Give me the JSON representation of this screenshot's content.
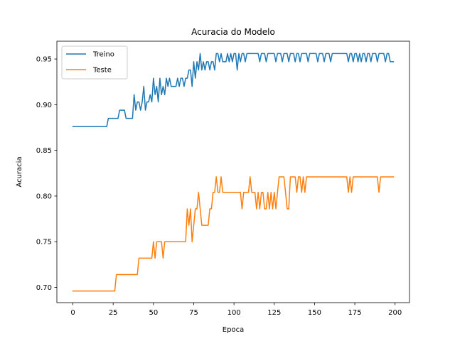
{
  "chart_data": {
    "type": "line",
    "title": "Acuracia do Modelo",
    "xlabel": "Epoca",
    "ylabel": "Acuracia",
    "xlim": [
      -9.95,
      208.95
    ],
    "ylim": [
      0.6833,
      0.9695
    ],
    "xticks": [
      0,
      25,
      50,
      75,
      100,
      125,
      150,
      175,
      200
    ],
    "yticks": [
      0.7,
      0.75,
      0.8,
      0.85,
      0.9,
      0.95
    ],
    "ytick_labels": [
      "0.70",
      "0.75",
      "0.80",
      "0.85",
      "0.90",
      "0.95"
    ],
    "grid": false,
    "legend_position": "top-left",
    "series": [
      {
        "name": "Treino",
        "color": "#1f77b4",
        "points": [
          [
            0,
            0.876
          ],
          [
            10,
            0.876
          ],
          [
            21,
            0.876
          ],
          [
            22,
            0.885
          ],
          [
            25,
            0.885
          ],
          [
            28,
            0.885
          ],
          [
            29,
            0.894
          ],
          [
            32,
            0.894
          ],
          [
            33,
            0.885
          ],
          [
            37,
            0.885
          ],
          [
            38,
            0.911
          ],
          [
            39,
            0.894
          ],
          [
            40,
            0.903
          ],
          [
            41,
            0.903
          ],
          [
            42,
            0.894
          ],
          [
            43,
            0.903
          ],
          [
            44,
            0.92
          ],
          [
            45,
            0.894
          ],
          [
            46,
            0.903
          ],
          [
            47,
            0.903
          ],
          [
            48,
            0.911
          ],
          [
            49,
            0.903
          ],
          [
            50,
            0.929
          ],
          [
            51,
            0.911
          ],
          [
            52,
            0.92
          ],
          [
            53,
            0.903
          ],
          [
            54,
            0.929
          ],
          [
            55,
            0.911
          ],
          [
            56,
            0.92
          ],
          [
            57,
            0.911
          ],
          [
            58,
            0.929
          ],
          [
            59,
            0.92
          ],
          [
            60,
            0.929
          ],
          [
            61,
            0.92
          ],
          [
            62,
            0.92
          ],
          [
            63,
            0.92
          ],
          [
            64,
            0.92
          ],
          [
            65,
            0.929
          ],
          [
            66,
            0.92
          ],
          [
            67,
            0.929
          ],
          [
            68,
            0.929
          ],
          [
            69,
            0.92
          ],
          [
            70,
            0.929
          ],
          [
            71,
            0.929
          ],
          [
            72,
            0.938
          ],
          [
            73,
            0.938
          ],
          [
            74,
            0.92
          ],
          [
            75,
            0.947
          ],
          [
            76,
            0.929
          ],
          [
            77,
            0.947
          ],
          [
            78,
            0.938
          ],
          [
            79,
            0.956
          ],
          [
            80,
            0.938
          ],
          [
            81,
            0.947
          ],
          [
            82,
            0.938
          ],
          [
            83,
            0.947
          ],
          [
            84,
            0.947
          ],
          [
            85,
            0.938
          ],
          [
            86,
            0.947
          ],
          [
            87,
            0.947
          ],
          [
            88,
            0.938
          ],
          [
            89,
            0.956
          ],
          [
            90,
            0.956
          ],
          [
            91,
            0.947
          ],
          [
            92,
            0.956
          ],
          [
            93,
            0.947
          ],
          [
            94,
            0.947
          ],
          [
            95,
            0.947
          ],
          [
            96,
            0.956
          ],
          [
            97,
            0.947
          ],
          [
            98,
            0.956
          ],
          [
            99,
            0.947
          ],
          [
            100,
            0.956
          ],
          [
            101,
            0.956
          ],
          [
            102,
            0.938
          ],
          [
            103,
            0.956
          ],
          [
            104,
            0.947
          ],
          [
            105,
            0.956
          ],
          [
            106,
            0.956
          ],
          [
            107,
            0.947
          ],
          [
            108,
            0.956
          ],
          [
            109,
            0.956
          ],
          [
            110,
            0.956
          ],
          [
            111,
            0.956
          ],
          [
            112,
            0.956
          ],
          [
            113,
            0.956
          ],
          [
            114,
            0.956
          ],
          [
            115,
            0.956
          ],
          [
            116,
            0.947
          ],
          [
            117,
            0.956
          ],
          [
            118,
            0.956
          ],
          [
            119,
            0.956
          ],
          [
            120,
            0.947
          ],
          [
            121,
            0.956
          ],
          [
            122,
            0.956
          ],
          [
            123,
            0.956
          ],
          [
            124,
            0.956
          ],
          [
            125,
            0.956
          ],
          [
            126,
            0.947
          ],
          [
            127,
            0.956
          ],
          [
            128,
            0.956
          ],
          [
            129,
            0.956
          ],
          [
            130,
            0.947
          ],
          [
            131,
            0.956
          ],
          [
            132,
            0.956
          ],
          [
            133,
            0.956
          ],
          [
            134,
            0.947
          ],
          [
            135,
            0.956
          ],
          [
            136,
            0.956
          ],
          [
            137,
            0.956
          ],
          [
            138,
            0.947
          ],
          [
            139,
            0.956
          ],
          [
            140,
            0.956
          ],
          [
            141,
            0.947
          ],
          [
            142,
            0.956
          ],
          [
            143,
            0.956
          ],
          [
            144,
            0.956
          ],
          [
            145,
            0.956
          ],
          [
            146,
            0.947
          ],
          [
            147,
            0.956
          ],
          [
            148,
            0.956
          ],
          [
            149,
            0.956
          ],
          [
            150,
            0.956
          ],
          [
            151,
            0.956
          ],
          [
            152,
            0.947
          ],
          [
            153,
            0.956
          ],
          [
            154,
            0.956
          ],
          [
            155,
            0.956
          ],
          [
            156,
            0.947
          ],
          [
            157,
            0.956
          ],
          [
            158,
            0.956
          ],
          [
            159,
            0.956
          ],
          [
            160,
            0.947
          ],
          [
            161,
            0.956
          ],
          [
            162,
            0.956
          ],
          [
            163,
            0.956
          ],
          [
            164,
            0.956
          ],
          [
            165,
            0.956
          ],
          [
            166,
            0.956
          ],
          [
            167,
            0.956
          ],
          [
            168,
            0.956
          ],
          [
            169,
            0.956
          ],
          [
            170,
            0.956
          ],
          [
            171,
            0.947
          ],
          [
            172,
            0.956
          ],
          [
            173,
            0.956
          ],
          [
            174,
            0.947
          ],
          [
            175,
            0.956
          ],
          [
            176,
            0.956
          ],
          [
            177,
            0.947
          ],
          [
            178,
            0.956
          ],
          [
            179,
            0.947
          ],
          [
            180,
            0.956
          ],
          [
            181,
            0.956
          ],
          [
            182,
            0.947
          ],
          [
            183,
            0.956
          ],
          [
            184,
            0.956
          ],
          [
            185,
            0.947
          ],
          [
            186,
            0.956
          ],
          [
            187,
            0.956
          ],
          [
            188,
            0.956
          ],
          [
            189,
            0.947
          ],
          [
            190,
            0.956
          ],
          [
            191,
            0.956
          ],
          [
            192,
            0.956
          ],
          [
            193,
            0.956
          ],
          [
            194,
            0.947
          ],
          [
            195,
            0.956
          ],
          [
            196,
            0.956
          ],
          [
            197,
            0.947
          ],
          [
            198,
            0.947
          ],
          [
            199,
            0.947
          ]
        ]
      },
      {
        "name": "Teste",
        "color": "#ff7f0e",
        "points": [
          [
            0,
            0.696
          ],
          [
            10,
            0.696
          ],
          [
            20,
            0.696
          ],
          [
            26,
            0.696
          ],
          [
            27,
            0.714
          ],
          [
            35,
            0.714
          ],
          [
            40,
            0.714
          ],
          [
            41,
            0.732
          ],
          [
            45,
            0.732
          ],
          [
            49,
            0.732
          ],
          [
            50,
            0.75
          ],
          [
            51,
            0.732
          ],
          [
            52,
            0.75
          ],
          [
            53,
            0.75
          ],
          [
            54,
            0.75
          ],
          [
            55,
            0.75
          ],
          [
            56,
            0.732
          ],
          [
            57,
            0.75
          ],
          [
            60,
            0.75
          ],
          [
            65,
            0.75
          ],
          [
            70,
            0.75
          ],
          [
            71,
            0.786
          ],
          [
            72,
            0.768
          ],
          [
            73,
            0.786
          ],
          [
            74,
            0.75
          ],
          [
            75,
            0.768
          ],
          [
            76,
            0.786
          ],
          [
            77,
            0.786
          ],
          [
            78,
            0.804
          ],
          [
            79,
            0.786
          ],
          [
            80,
            0.768
          ],
          [
            81,
            0.768
          ],
          [
            82,
            0.768
          ],
          [
            83,
            0.768
          ],
          [
            84,
            0.768
          ],
          [
            85,
            0.786
          ],
          [
            86,
            0.786
          ],
          [
            87,
            0.804
          ],
          [
            88,
            0.804
          ],
          [
            89,
            0.821
          ],
          [
            90,
            0.804
          ],
          [
            91,
            0.804
          ],
          [
            92,
            0.821
          ],
          [
            93,
            0.804
          ],
          [
            94,
            0.804
          ],
          [
            95,
            0.804
          ],
          [
            96,
            0.804
          ],
          [
            97,
            0.804
          ],
          [
            98,
            0.804
          ],
          [
            99,
            0.804
          ],
          [
            100,
            0.804
          ],
          [
            101,
            0.804
          ],
          [
            102,
            0.804
          ],
          [
            103,
            0.804
          ],
          [
            104,
            0.804
          ],
          [
            105,
            0.786
          ],
          [
            106,
            0.804
          ],
          [
            107,
            0.804
          ],
          [
            108,
            0.804
          ],
          [
            109,
            0.804
          ],
          [
            110,
            0.821
          ],
          [
            111,
            0.804
          ],
          [
            112,
            0.804
          ],
          [
            113,
            0.804
          ],
          [
            114,
            0.786
          ],
          [
            115,
            0.804
          ],
          [
            116,
            0.786
          ],
          [
            117,
            0.804
          ],
          [
            118,
            0.804
          ],
          [
            119,
            0.786
          ],
          [
            120,
            0.786
          ],
          [
            121,
            0.804
          ],
          [
            122,
            0.786
          ],
          [
            123,
            0.804
          ],
          [
            124,
            0.786
          ],
          [
            125,
            0.804
          ],
          [
            126,
            0.786
          ],
          [
            127,
            0.804
          ],
          [
            128,
            0.821
          ],
          [
            129,
            0.821
          ],
          [
            130,
            0.821
          ],
          [
            131,
            0.821
          ],
          [
            132,
            0.804
          ],
          [
            133,
            0.786
          ],
          [
            134,
            0.786
          ],
          [
            135,
            0.821
          ],
          [
            136,
            0.821
          ],
          [
            137,
            0.821
          ],
          [
            138,
            0.821
          ],
          [
            139,
            0.804
          ],
          [
            140,
            0.821
          ],
          [
            141,
            0.821
          ],
          [
            142,
            0.804
          ],
          [
            143,
            0.821
          ],
          [
            144,
            0.804
          ],
          [
            145,
            0.821
          ],
          [
            146,
            0.821
          ],
          [
            147,
            0.821
          ],
          [
            150,
            0.821
          ],
          [
            155,
            0.821
          ],
          [
            160,
            0.821
          ],
          [
            165,
            0.821
          ],
          [
            170,
            0.821
          ],
          [
            171,
            0.804
          ],
          [
            172,
            0.821
          ],
          [
            173,
            0.804
          ],
          [
            174,
            0.821
          ],
          [
            175,
            0.821
          ],
          [
            180,
            0.821
          ],
          [
            185,
            0.821
          ],
          [
            189,
            0.821
          ],
          [
            190,
            0.804
          ],
          [
            191,
            0.821
          ],
          [
            195,
            0.821
          ],
          [
            199,
            0.821
          ]
        ]
      }
    ]
  }
}
